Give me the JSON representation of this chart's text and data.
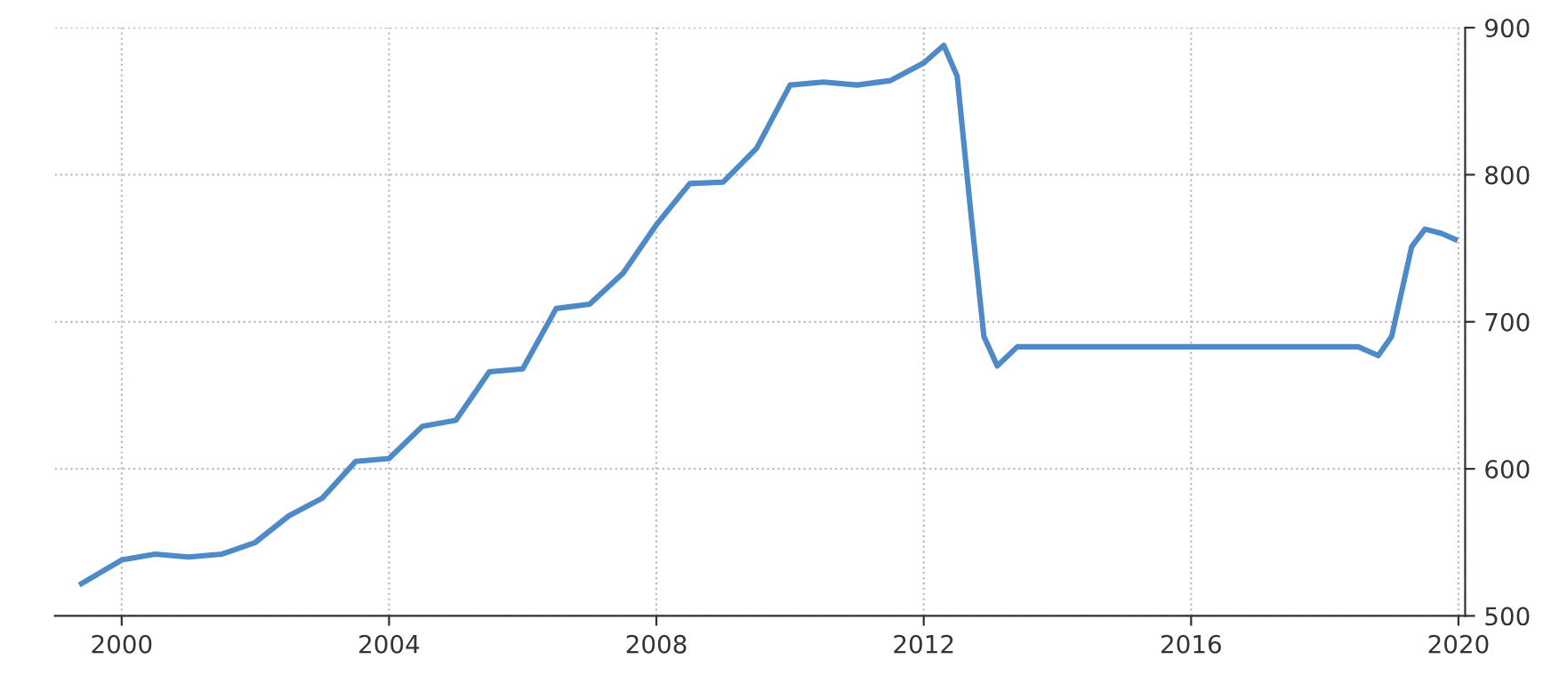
{
  "chart_data": {
    "type": "line",
    "x": [
      1999.4,
      2000,
      2000.5,
      2001,
      2001.5,
      2002,
      2002.5,
      2003,
      2003.5,
      2004,
      2004.5,
      2005,
      2005.5,
      2006,
      2006.5,
      2007,
      2007.5,
      2008,
      2008.5,
      2009,
      2009.5,
      2010,
      2010.5,
      2011,
      2011.5,
      2012,
      2012.3,
      2012.5,
      2012.7,
      2012.9,
      2013.1,
      2013.4,
      2018.5,
      2018.8,
      2019,
      2019.3,
      2019.5,
      2019.75,
      2019.95
    ],
    "series": [
      {
        "color": "#4e8ac8",
        "values": [
          522,
          538,
          542,
          540,
          542,
          550,
          568,
          580,
          605,
          607,
          629,
          633,
          666,
          668,
          709,
          712,
          733,
          766,
          794,
          795,
          818,
          861,
          863,
          861,
          864,
          876,
          888,
          867,
          776,
          690,
          670,
          683,
          683,
          677,
          690,
          751,
          763,
          760,
          756
        ]
      }
    ],
    "xlim": [
      1999,
      2020.1
    ],
    "xticks": [
      2000,
      2004,
      2008,
      2012,
      2016,
      2020
    ],
    "ylim": [
      500,
      900
    ],
    "yticks": [
      500,
      600,
      700,
      800,
      900
    ],
    "grid": true,
    "legend": false,
    "marker": "none",
    "line_style": "solid"
  }
}
